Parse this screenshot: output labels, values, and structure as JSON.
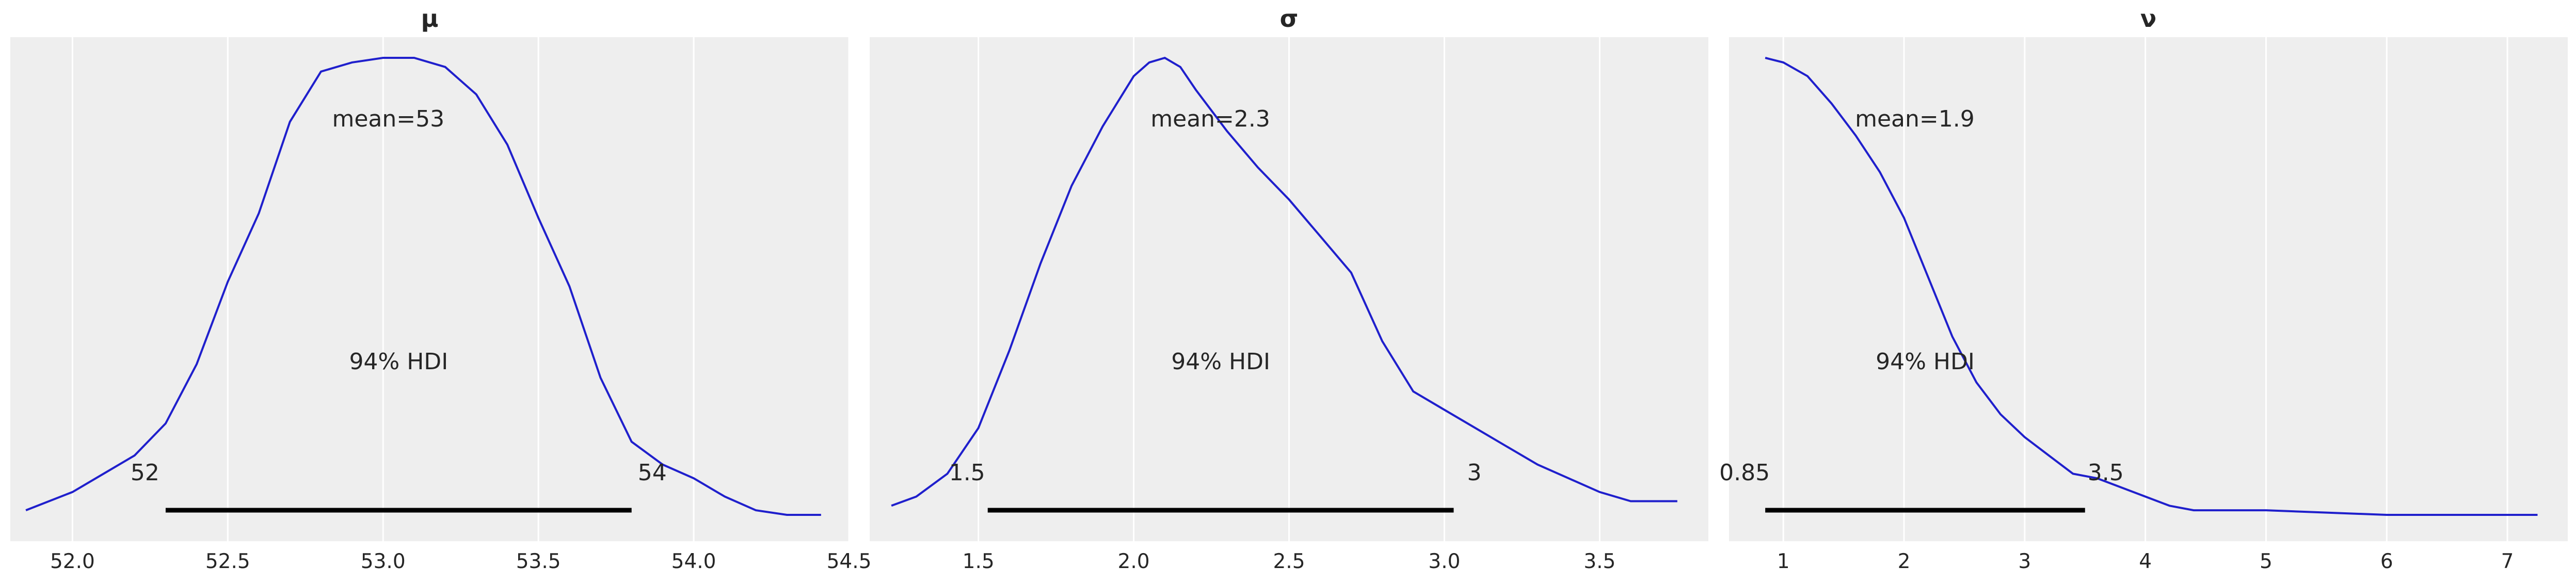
{
  "chart_data": [
    {
      "type": "line",
      "title": "μ",
      "xlim": [
        51.8,
        54.5
      ],
      "xticks": [
        52.0,
        52.5,
        53.0,
        53.5,
        54.0,
        54.5
      ],
      "xtick_labels": [
        "52.0",
        "52.5",
        "53.0",
        "53.5",
        "54.0",
        "54.5"
      ],
      "grid": true,
      "mean_label": "mean=53",
      "hdi_label": "94% HDI",
      "hdi": [
        52.3,
        53.8
      ],
      "hdi_low_label": "52",
      "hdi_high_label": "54",
      "series": [
        {
          "x": [
            51.85,
            52.0,
            52.1,
            52.2,
            52.3,
            52.4,
            52.5,
            52.6,
            52.7,
            52.8,
            52.9,
            53.0,
            53.05,
            53.1,
            53.2,
            53.3,
            53.4,
            53.5,
            53.6,
            53.7,
            53.8,
            53.9,
            54.0,
            54.1,
            54.2,
            54.3,
            54.41
          ],
          "y": [
            0.01,
            0.05,
            0.09,
            0.13,
            0.2,
            0.33,
            0.51,
            0.66,
            0.86,
            0.97,
            0.99,
            1.0,
            1.0,
            1.0,
            0.98,
            0.92,
            0.81,
            0.65,
            0.5,
            0.3,
            0.16,
            0.11,
            0.08,
            0.04,
            0.01,
            0.0,
            0.0
          ]
        }
      ]
    },
    {
      "type": "line",
      "title": "σ",
      "xlim": [
        1.15,
        3.85
      ],
      "xticks": [
        1.5,
        2.0,
        2.5,
        3.0,
        3.5
      ],
      "xtick_labels": [
        "1.5",
        "2.0",
        "2.5",
        "3.0",
        "3.5"
      ],
      "grid": true,
      "mean_label": "mean=2.3",
      "hdi_label": "94% HDI",
      "hdi": [
        1.53,
        3.03
      ],
      "hdi_low_label": "1.5",
      "hdi_high_label": "3",
      "series": [
        {
          "x": [
            1.22,
            1.3,
            1.4,
            1.5,
            1.6,
            1.7,
            1.8,
            1.9,
            2.0,
            2.05,
            2.1,
            2.15,
            2.2,
            2.3,
            2.4,
            2.5,
            2.6,
            2.7,
            2.8,
            2.9,
            3.0,
            3.1,
            3.2,
            3.3,
            3.4,
            3.5,
            3.6,
            3.75
          ],
          "y": [
            0.02,
            0.04,
            0.09,
            0.19,
            0.36,
            0.55,
            0.72,
            0.85,
            0.96,
            0.99,
            1.0,
            0.98,
            0.93,
            0.84,
            0.76,
            0.69,
            0.61,
            0.53,
            0.38,
            0.27,
            0.23,
            0.19,
            0.15,
            0.11,
            0.08,
            0.05,
            0.03,
            0.03
          ]
        }
      ]
    },
    {
      "type": "line",
      "title": "ν",
      "xlim": [
        0.55,
        7.5
      ],
      "xticks": [
        1,
        2,
        3,
        4,
        5,
        6,
        7
      ],
      "xtick_labels": [
        "1",
        "2",
        "3",
        "4",
        "5",
        "6",
        "7"
      ],
      "grid": true,
      "mean_label": "mean=1.9",
      "hdi_label": "94% HDI",
      "hdi": [
        0.85,
        3.5
      ],
      "hdi_low_label": "0.85",
      "hdi_high_label": "3.5",
      "series": [
        {
          "x": [
            0.85,
            1.0,
            1.2,
            1.4,
            1.6,
            1.8,
            2.0,
            2.2,
            2.4,
            2.6,
            2.8,
            3.0,
            3.2,
            3.4,
            3.6,
            3.8,
            4.0,
            4.2,
            4.4,
            4.6,
            5.0,
            5.5,
            6.0,
            6.5,
            7.0,
            7.25
          ],
          "y": [
            1.0,
            0.99,
            0.96,
            0.9,
            0.83,
            0.75,
            0.65,
            0.52,
            0.39,
            0.29,
            0.22,
            0.17,
            0.13,
            0.09,
            0.08,
            0.06,
            0.04,
            0.02,
            0.01,
            0.01,
            0.01,
            0.005,
            0.0,
            0.0,
            0.0,
            0.0
          ]
        }
      ]
    }
  ]
}
